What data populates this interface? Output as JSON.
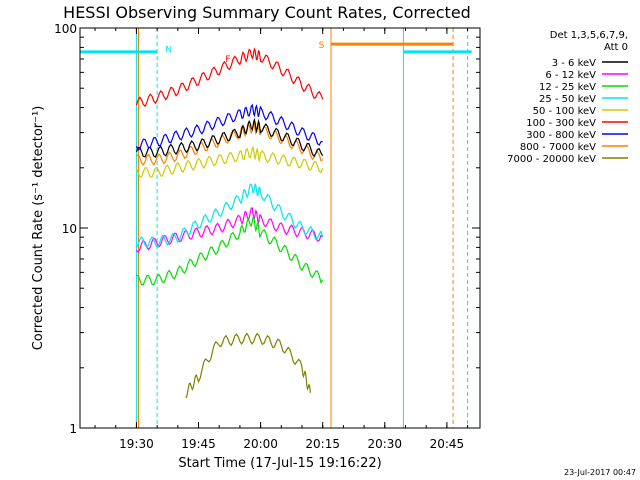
{
  "chart_data": {
    "type": "line",
    "title": "HESSI Observing Summary Count Rates, Corrected",
    "xlabel": "Start Time (17-Jul-15 19:16:22)",
    "ylabel": "Corrected Count Rate (s⁻¹ detector⁻¹)",
    "x_axis": {
      "unit": "clock time",
      "range": [
        "19:16:22",
        "20:53:00"
      ],
      "ticks": [
        "19:30",
        "19:45",
        "20:00",
        "20:15",
        "20:30",
        "20:45"
      ]
    },
    "y_axis": {
      "scale": "log",
      "range": [
        1,
        100
      ],
      "ticks": [
        "1",
        "10",
        "100"
      ]
    },
    "legend": {
      "placement": "top-right",
      "header": [
        "Det 1,3,5,6,7,9,",
        "Att 0"
      ]
    },
    "series": [
      {
        "name": "3 - 6 keV",
        "color": "#000000",
        "x": [
          "19:30",
          "19:35",
          "19:40",
          "19:45",
          "19:50",
          "19:55",
          "19:58",
          "20:00",
          "20:05",
          "20:10",
          "20:15"
        ],
        "values": [
          24,
          24,
          25,
          26,
          28,
          30,
          33,
          32,
          29,
          26,
          23
        ]
      },
      {
        "name": "6 - 12 keV",
        "color": "#ff00ff",
        "x": [
          "19:30",
          "19:35",
          "19:40",
          "19:45",
          "19:50",
          "19:55",
          "19:58",
          "20:00",
          "20:05",
          "20:10",
          "20:15"
        ],
        "values": [
          8,
          8.5,
          9,
          9.5,
          10,
          11,
          12,
          11,
          10,
          9.5,
          9
        ]
      },
      {
        "name": "12 - 25 keV",
        "color": "#00dd00",
        "x": [
          "19:30",
          "19:35",
          "19:40",
          "19:45",
          "19:50",
          "19:55",
          "19:58",
          "20:00",
          "20:05",
          "20:10",
          "20:15"
        ],
        "values": [
          5.5,
          5.5,
          6,
          7,
          8,
          9.5,
          11,
          9.5,
          8,
          6.5,
          5.5
        ]
      },
      {
        "name": "25 - 50 keV",
        "color": "#00e5ee",
        "x": [
          "19:30",
          "19:35",
          "19:40",
          "19:45",
          "19:50",
          "19:55",
          "19:58",
          "20:00",
          "20:05",
          "20:10",
          "20:15"
        ],
        "values": [
          8.5,
          8.5,
          9,
          10.5,
          12,
          14,
          16,
          15,
          12,
          10,
          9
        ]
      },
      {
        "name": "50 - 100 keV",
        "color": "#cccc00",
        "x": [
          "19:30",
          "19:35",
          "19:40",
          "19:45",
          "19:50",
          "19:55",
          "19:58",
          "20:00",
          "20:05",
          "20:10",
          "20:15"
        ],
        "values": [
          19,
          19,
          20,
          21,
          22,
          23,
          24,
          23,
          22,
          21,
          20
        ]
      },
      {
        "name": "100 - 300 keV",
        "color": "#ff0000",
        "x": [
          "19:30",
          "19:35",
          "19:40",
          "19:45",
          "19:50",
          "19:55",
          "19:58",
          "20:00",
          "20:05",
          "20:10",
          "20:15"
        ],
        "values": [
          42,
          45,
          49,
          55,
          62,
          70,
          75,
          72,
          62,
          52,
          44
        ]
      },
      {
        "name": "300 - 800 keV",
        "color": "#0000ff",
        "x": [
          "19:30",
          "19:35",
          "19:40",
          "19:45",
          "19:50",
          "19:55",
          "19:58",
          "20:00",
          "20:05",
          "20:10",
          "20:15"
        ],
        "values": [
          26,
          27,
          29,
          31,
          34,
          37,
          39,
          38,
          34,
          30,
          27
        ]
      },
      {
        "name": "800 - 7000 keV",
        "color": "#ff8000",
        "x": [
          "19:30",
          "19:35",
          "19:40",
          "19:45",
          "19:50",
          "19:55",
          "19:58",
          "20:00",
          "20:05",
          "20:10",
          "20:15"
        ],
        "values": [
          22,
          22,
          23,
          25,
          27,
          30,
          32,
          31,
          28,
          25,
          22
        ]
      },
      {
        "name": "7000 - 20000 keV",
        "color": "#808000",
        "x": [
          "19:42",
          "19:45",
          "19:50",
          "19:55",
          "20:00",
          "20:05",
          "20:10",
          "20:12"
        ],
        "values": [
          1.5,
          1.8,
          2.7,
          2.8,
          2.8,
          2.6,
          2.0,
          1.5
        ]
      }
    ],
    "annotations": [
      {
        "label": "N",
        "color": "#00e5ee",
        "position": "top"
      },
      {
        "label": "F",
        "color": "#ff0000",
        "position": "top"
      },
      {
        "label": "S",
        "color": "#ff8000",
        "position": "top"
      }
    ],
    "footer_date": "23-Jul-2017 00:47"
  }
}
